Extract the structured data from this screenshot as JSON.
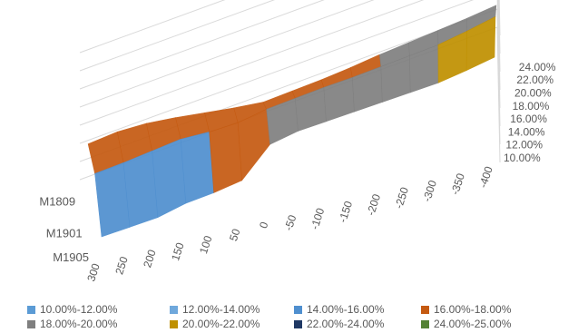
{
  "chart_data": {
    "type": "surface",
    "title": "",
    "x_tick_labels": [
      "300",
      "250",
      "200",
      "150",
      "100",
      "50",
      "0",
      "-50",
      "-100",
      "-150",
      "-200",
      "-250",
      "-300",
      "-350",
      "-400"
    ],
    "z_tick_labels": [
      "10.00%",
      "12.00%",
      "14.00%",
      "16.00%",
      "18.00%",
      "20.00%",
      "22.00%",
      "24.00%"
    ],
    "zlim": [
      10,
      24
    ],
    "rows": [
      {
        "label": "M1809",
        "values": [
          17.2,
          17.5,
          17.4,
          17.0,
          16.5,
          16.0,
          15.6,
          15.8,
          16.0,
          16.3,
          16.7,
          17.0,
          17.3,
          17.6,
          18.0
        ]
      },
      {
        "label": "M1901",
        "values": [
          16.6,
          16.9,
          17.3,
          17.7,
          17.6,
          17.7,
          18.3,
          18.6,
          18.9,
          19.1,
          19.4,
          19.7,
          20.0,
          20.6,
          21.3
        ]
      },
      {
        "label": "M1905",
        "values": [
          12.3,
          12.6,
          12.9,
          13.7,
          14.1,
          14.7,
          17.9,
          18.6,
          18.9,
          19.2,
          19.5,
          19.8,
          20.1,
          20.7,
          21.4
        ]
      }
    ],
    "legend": [
      {
        "label": "10.00%-12.00%",
        "color": "#5B9BD5"
      },
      {
        "label": "12.00%-14.00%",
        "color": "#6FA8DC"
      },
      {
        "label": "14.00%-16.00%",
        "color": "#4F8FCF"
      },
      {
        "label": "16.00%-18.00%",
        "color": "#C55A11"
      },
      {
        "label": "18.00%-20.00%",
        "color": "#7F7F7F"
      },
      {
        "label": "20.00%-22.00%",
        "color": "#BF9000"
      },
      {
        "label": "22.00%-24.00%",
        "color": "#1F3864"
      },
      {
        "label": "24.00%-25.00%",
        "color": "#548235"
      }
    ],
    "legend_position": "bottom",
    "gridlines": true
  }
}
